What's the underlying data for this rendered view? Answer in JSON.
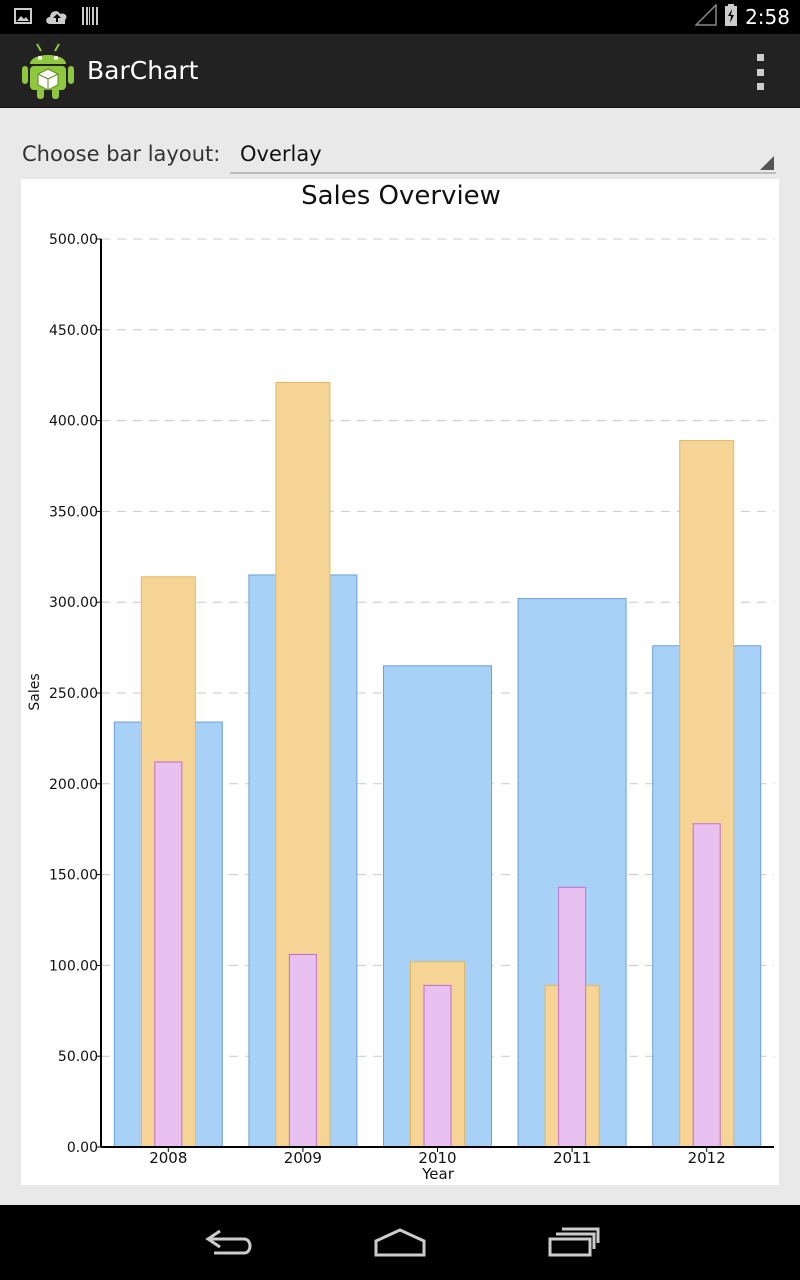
{
  "status_bar": {
    "time": "2:58",
    "left_icons": [
      "image-icon",
      "cloud-upload-icon",
      "barcode-icon"
    ],
    "right_icons": [
      "signal-icon",
      "battery-charging-icon"
    ]
  },
  "action_bar": {
    "title": "BarChart",
    "icon": "android-robot-icon",
    "overflow_icon": "overflow-menu-icon"
  },
  "controls": {
    "layout_label": "Choose bar layout:",
    "layout_value": "Overlay"
  },
  "chart_data": {
    "type": "bar",
    "layout": "overlay",
    "title": "Sales Overview",
    "xlabel": "Year",
    "ylabel": "Sales",
    "categories": [
      "2008",
      "2009",
      "2010",
      "2011",
      "2012"
    ],
    "ylim": [
      0,
      500
    ],
    "yticks": [
      "0.00",
      "50.00",
      "100.00",
      "150.00",
      "200.00",
      "250.00",
      "300.00",
      "350.00",
      "400.00",
      "450.00",
      "500.00"
    ],
    "grid": true,
    "series": [
      {
        "values": [
          234,
          315,
          265,
          302,
          276
        ],
        "color": "#a8d1f8",
        "stroke": "#6e9fd6"
      },
      {
        "values": [
          314,
          421,
          102,
          89,
          389
        ],
        "color": "#f5d496",
        "stroke": "#e3b860"
      },
      {
        "values": [
          212,
          106,
          89,
          143,
          178
        ],
        "color": "#e8c1f0",
        "stroke": "#c06fc9"
      }
    ]
  },
  "nav_bar": {
    "icons": [
      "back-icon",
      "home-icon",
      "recents-icon"
    ]
  }
}
